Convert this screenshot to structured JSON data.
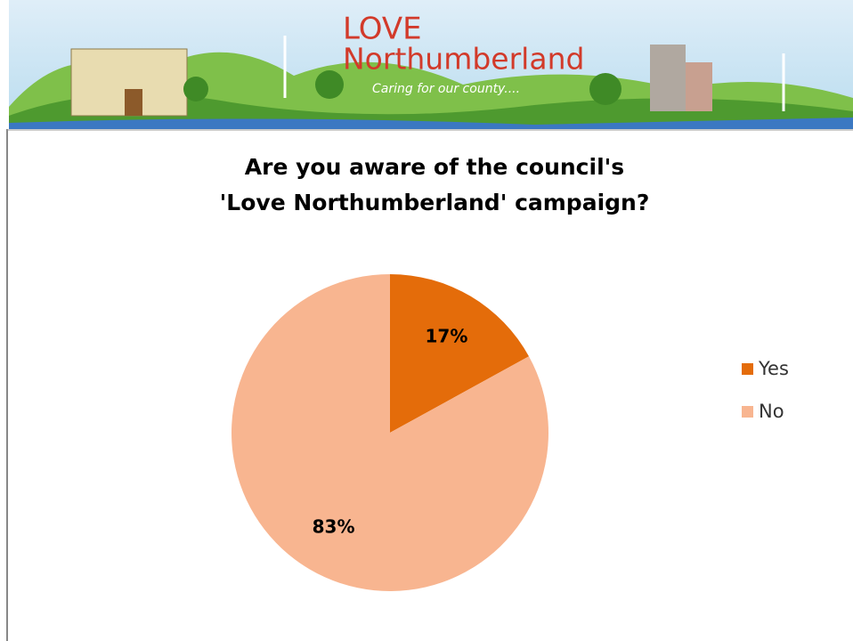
{
  "header": {
    "brand_top": "LOVE",
    "brand_bottom": "Northumberland",
    "tagline": "Caring for our county...."
  },
  "chart_data": {
    "type": "pie",
    "title": "Are you aware of the council's 'Love Northumberland' campaign?",
    "categories": [
      "Yes",
      "No"
    ],
    "values": [
      17,
      83
    ],
    "value_labels": [
      "17%",
      "83%"
    ],
    "colors": [
      "#e46c0a",
      "#f8b590"
    ],
    "legend": "right"
  }
}
